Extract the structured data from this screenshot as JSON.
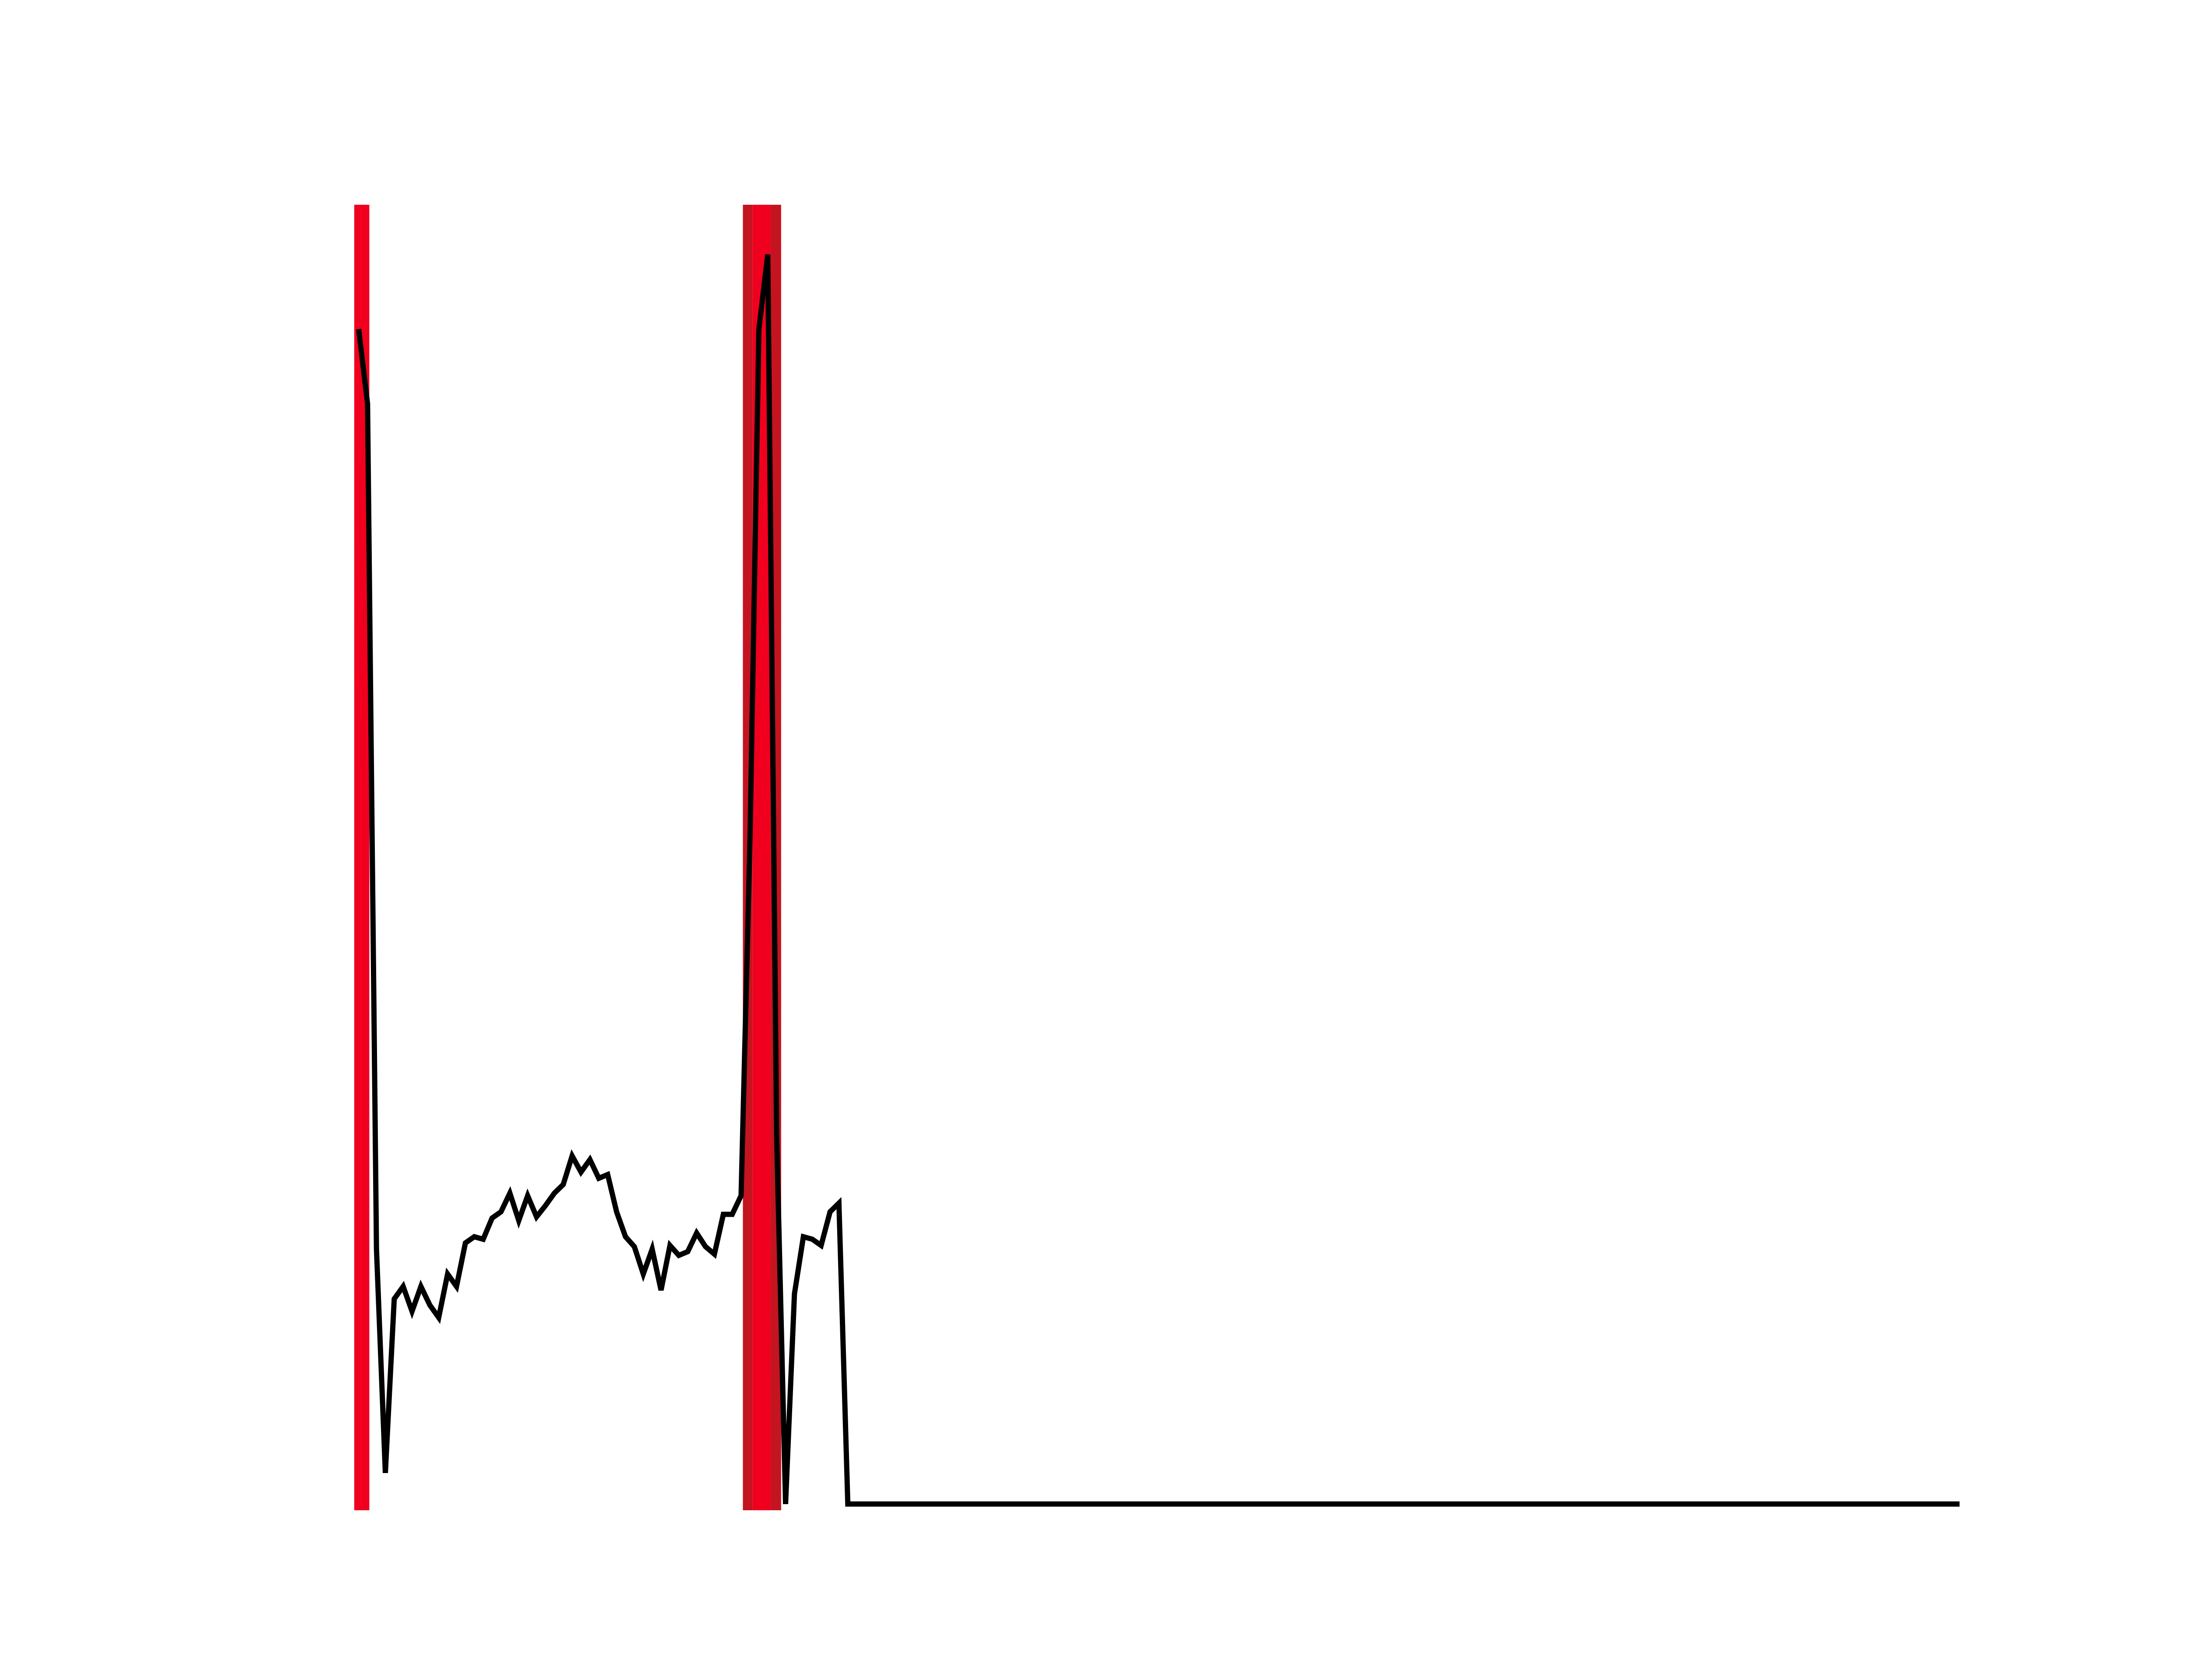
{
  "chart_data": {
    "type": "line",
    "title": "",
    "xlabel": "",
    "ylabel": "",
    "axes_visible": false,
    "grid": false,
    "legend": "none",
    "xlim": [
      0,
      180
    ],
    "ylim": [
      -0.05,
      1.0
    ],
    "series": [
      {
        "color": "#000000",
        "x": [
          0,
          1,
          2,
          3,
          4,
          5,
          6,
          7,
          8,
          9,
          10,
          11,
          12,
          13,
          14,
          15,
          16,
          17,
          18,
          19,
          20,
          21,
          22,
          23,
          24,
          25,
          26,
          27,
          28,
          29,
          30,
          31,
          32,
          33,
          34,
          35,
          36,
          37,
          38,
          39,
          40,
          41,
          42,
          43,
          44,
          45,
          46,
          47,
          48,
          49,
          50,
          51,
          52,
          53,
          54,
          55,
          56,
          57,
          58,
          59,
          180
        ],
        "y": [
          0.9,
          0.84,
          0.16,
          -0.02,
          0.12,
          0.13,
          0.11,
          0.13,
          0.115,
          0.105,
          0.14,
          0.13,
          0.165,
          0.17,
          0.168,
          0.185,
          0.19,
          0.205,
          0.183,
          0.203,
          0.186,
          0.195,
          0.205,
          0.212,
          0.235,
          0.222,
          0.232,
          0.217,
          0.22,
          0.19,
          0.17,
          0.162,
          0.14,
          0.16,
          0.127,
          0.163,
          0.155,
          0.158,
          0.173,
          0.162,
          0.156,
          0.188,
          0.188,
          0.203,
          0.49,
          0.9,
          0.96,
          0.25,
          -0.045,
          0.124,
          0.17,
          0.168,
          0.163,
          0.19,
          0.197,
          -0.045,
          -0.045,
          -0.045,
          -0.045,
          -0.045,
          -0.045
        ]
      }
    ],
    "highlight_bands": [
      {
        "x_start": -0.5,
        "x_end": 1.2,
        "color": "#f0001e"
      },
      {
        "x_start": 43.2,
        "x_end": 44.3,
        "color": "#c41420"
      },
      {
        "x_start": 44.3,
        "x_end": 46.3,
        "color": "#f0001e"
      },
      {
        "x_start": 46.3,
        "x_end": 47.5,
        "color": "#c41420"
      }
    ]
  }
}
